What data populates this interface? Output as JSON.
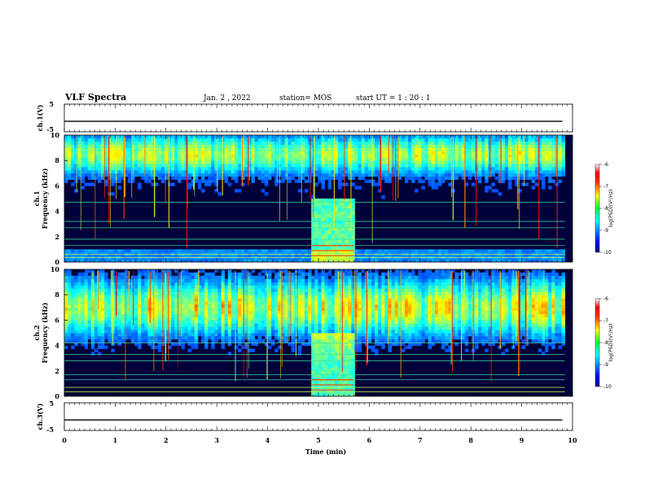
{
  "header": {
    "title": "VLF Spectra",
    "date": "Jan. 2 , 2022",
    "station": "station= MOS",
    "start": "start UT =  1 : 20 : 1"
  },
  "colors": {
    "colormap": "jet"
  },
  "chart_data": [
    {
      "type": "line",
      "id": "ch1-voltage",
      "ylabel": "ch.1(V)",
      "xlim": [
        0,
        10
      ],
      "ylim": [
        -5,
        5
      ],
      "yticks": [
        "5",
        "-5"
      ],
      "series": [
        {
          "x": [
            0,
            9.8
          ],
          "y": [
            -1.2,
            -1.2
          ]
        }
      ]
    },
    {
      "type": "heatmap",
      "id": "ch1-spectrogram",
      "ylabel": "Frequency (kHz)",
      "chlabel": "ch.1",
      "xlim": [
        0,
        9.85
      ],
      "ylim": [
        0,
        10
      ],
      "yticks": [
        "0",
        "2",
        "4",
        "6",
        "8",
        "10"
      ],
      "lines_khz": [
        0.35,
        0.6,
        1.3,
        1.8,
        2.7,
        3.2,
        4.7
      ],
      "burst_min": [
        4.85,
        5.7
      ],
      "colorbar": {
        "label": "log(PSD)(V²/Hz)",
        "range": [
          -10,
          -6
        ],
        "ticks": [
          "-6",
          "-7",
          "-8",
          "-9",
          "-10"
        ]
      }
    },
    {
      "type": "heatmap",
      "id": "ch2-spectrogram",
      "ylabel": "Frequency (kHz)",
      "chlabel": "ch.2",
      "xlim": [
        0,
        9.85
      ],
      "ylim": [
        0,
        10
      ],
      "yticks": [
        "0",
        "2",
        "4",
        "6",
        "8",
        "10"
      ],
      "lines_khz": [
        0.35,
        0.7,
        1.3,
        1.7,
        2.8,
        3.3,
        4.2
      ],
      "burst_min": [
        4.85,
        5.7
      ],
      "colorbar": {
        "label": "log(PSD)(V²/Hz)",
        "range": [
          -10,
          -6
        ],
        "ticks": [
          "-6",
          "-7",
          "-8",
          "-9",
          "-10"
        ]
      }
    },
    {
      "type": "line",
      "id": "ch3-voltage",
      "ylabel": "ch.3(V)",
      "xlim": [
        0,
        10
      ],
      "ylim": [
        -5,
        5
      ],
      "yticks": [
        "5",
        "-5"
      ],
      "series": [
        {
          "x": [
            0,
            9.8
          ],
          "y": [
            -1.2,
            -1.2
          ]
        }
      ]
    }
  ],
  "xaxis": {
    "label": "Time (min)",
    "ticks": [
      "0",
      "1",
      "2",
      "3",
      "4",
      "5",
      "6",
      "7",
      "8",
      "9",
      "10"
    ]
  }
}
